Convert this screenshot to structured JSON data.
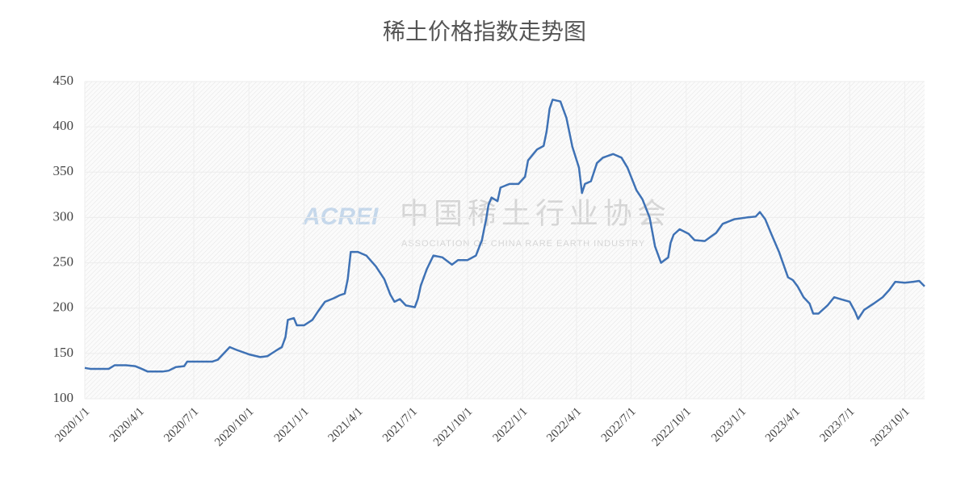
{
  "chart_data": {
    "type": "line",
    "title": "稀土价格指数走势图",
    "watermark": {
      "logo": "ACREI",
      "name": "中国稀土行业协会",
      "subtitle": "ASSOCIATION OF CHINA RARE EARTH INDUSTRY"
    },
    "x": [
      "2020/1/1",
      "2020/1/10",
      "2020/2/10",
      "2020/2/20",
      "2020/3/10",
      "2020/3/25",
      "2020/4/5",
      "2020/4/15",
      "2020/5/10",
      "2020/5/20",
      "2020/6/1",
      "2020/6/15",
      "2020/6/20",
      "2020/7/1",
      "2020/8/1",
      "2020/8/10",
      "2020/8/20",
      "2020/8/30",
      "2020/9/10",
      "2020/10/1",
      "2020/10/20",
      "2020/11/1",
      "2020/11/15",
      "2020/11/25",
      "2020/12/1",
      "2020/12/5",
      "2020/12/15",
      "2020/12/20",
      "2021/1/1",
      "2021/1/15",
      "2021/1/25",
      "2021/2/5",
      "2021/2/20",
      "2021/3/1",
      "2021/3/10",
      "2021/3/15",
      "2021/3/20",
      "2021/4/1",
      "2021/4/15",
      "2021/5/1",
      "2021/5/15",
      "2021/5/25",
      "2021/6/1",
      "2021/6/10",
      "2021/6/20",
      "2021/7/5",
      "2021/7/10",
      "2021/7/15",
      "2021/7/25",
      "2021/8/5",
      "2021/8/20",
      "2021/9/5",
      "2021/9/15",
      "2021/10/1",
      "2021/10/15",
      "2021/10/25",
      "2021/11/1",
      "2021/11/5",
      "2021/11/10",
      "2021/11/20",
      "2021/11/25",
      "2021/12/10",
      "2021/12/25",
      "2022/1/5",
      "2022/1/10",
      "2022/1/25",
      "2022/2/5",
      "2022/2/10",
      "2022/2/15",
      "2022/2/20",
      "2022/3/5",
      "2022/3/15",
      "2022/3/25",
      "2022/4/5",
      "2022/4/10",
      "2022/4/15",
      "2022/4/25",
      "2022/5/5",
      "2022/5/15",
      "2022/6/1",
      "2022/6/15",
      "2022/6/25",
      "2022/7/10",
      "2022/7/20",
      "2022/8/1",
      "2022/8/10",
      "2022/8/20",
      "2022/9/1",
      "2022/9/5",
      "2022/9/10",
      "2022/9/20",
      "2022/10/5",
      "2022/10/15",
      "2022/11/1",
      "2022/11/20",
      "2022/12/1",
      "2022/12/20",
      "2023/1/10",
      "2023/1/25",
      "2023/2/1",
      "2023/2/10",
      "2023/2/20",
      "2023/3/5",
      "2023/3/20",
      "2023/3/28",
      "2023/4/5",
      "2023/4/15",
      "2023/4/25",
      "2023/5/1",
      "2023/5/10",
      "2023/5/25",
      "2023/6/5",
      "2023/6/15",
      "2023/7/1",
      "2023/7/10",
      "2023/7/15",
      "2023/7/25",
      "2023/8/10",
      "2023/8/25",
      "2023/9/5",
      "2023/9/15",
      "2023/10/1",
      "2023/10/15",
      "2023/10/25",
      "2023/11/3"
    ],
    "series": [
      {
        "color": "#3f72b5",
        "values": [
          134,
          133,
          133,
          137,
          137,
          136,
          133,
          130,
          130,
          131,
          135,
          136,
          141,
          141,
          141,
          143,
          150,
          157,
          154,
          149,
          146,
          147,
          153,
          157,
          168,
          187,
          189,
          181,
          181,
          187,
          197,
          207,
          211,
          214,
          216,
          232,
          262,
          262,
          258,
          246,
          232,
          215,
          207,
          210,
          203,
          201,
          210,
          225,
          243,
          258,
          256,
          248,
          253,
          253,
          258,
          275,
          298,
          314,
          322,
          318,
          333,
          337,
          337,
          345,
          363,
          375,
          379,
          395,
          420,
          430,
          428,
          410,
          378,
          355,
          327,
          337,
          340,
          360,
          366,
          370,
          366,
          355,
          330,
          320,
          300,
          268,
          250,
          256,
          272,
          281,
          287,
          282,
          275,
          274,
          283,
          293,
          298,
          300,
          301,
          306,
          298,
          282,
          262,
          234,
          231,
          224,
          212,
          205,
          194,
          194,
          203,
          212,
          210,
          207,
          196,
          188,
          198,
          205,
          212,
          220,
          229,
          228,
          229,
          230,
          224
        ]
      }
    ],
    "xlim": [
      "2020/1/1",
      "2023/11/3"
    ],
    "xticks": [
      "2020/1/1",
      "2020/4/1",
      "2020/7/1",
      "2020/10/1",
      "2021/1/1",
      "2021/4/1",
      "2021/7/1",
      "2021/10/1",
      "2022/1/1",
      "2022/4/1",
      "2022/7/1",
      "2022/10/1",
      "2023/1/1",
      "2023/4/1",
      "2023/7/1",
      "2023/10/1"
    ],
    "ylim": [
      100,
      450
    ],
    "yticks": [
      100,
      150,
      200,
      250,
      300,
      350,
      400,
      450
    ],
    "grid": true
  }
}
